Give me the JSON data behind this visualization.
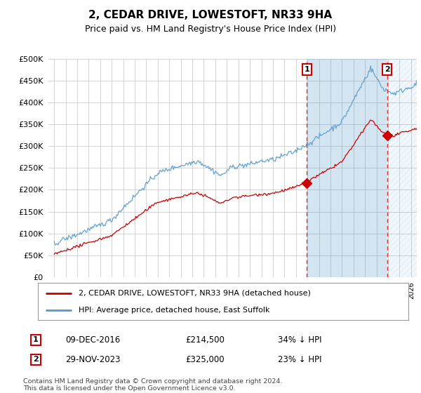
{
  "title": "2, CEDAR DRIVE, LOWESTOFT, NR33 9HA",
  "subtitle": "Price paid vs. HM Land Registry's House Price Index (HPI)",
  "legend_red": "2, CEDAR DRIVE, LOWESTOFT, NR33 9HA (detached house)",
  "legend_blue": "HPI: Average price, detached house, East Suffolk",
  "sale1_date": "09-DEC-2016",
  "sale1_price": "£214,500",
  "sale1_hpi": "34% ↓ HPI",
  "sale1_year": 2016.95,
  "sale1_value": 214500,
  "sale2_date": "29-NOV-2023",
  "sale2_price": "£325,000",
  "sale2_hpi": "23% ↓ HPI",
  "sale2_year": 2023.92,
  "sale2_value": 325000,
  "footer": "Contains HM Land Registry data © Crown copyright and database right 2024.\nThis data is licensed under the Open Government Licence v3.0.",
  "ytick_vals": [
    0,
    50000,
    100000,
    150000,
    200000,
    250000,
    300000,
    350000,
    400000,
    450000,
    500000
  ],
  "xlim": [
    1994.5,
    2026.5
  ],
  "ylim": [
    0,
    500000
  ],
  "bg_color": "#ffffff",
  "plot_bg": "#ffffff",
  "line_red": "#cc0000",
  "line_blue": "#5599cc",
  "shade_blue": "#ddeeff",
  "vline_color": "#dd3333",
  "grid_color": "#cccccc"
}
